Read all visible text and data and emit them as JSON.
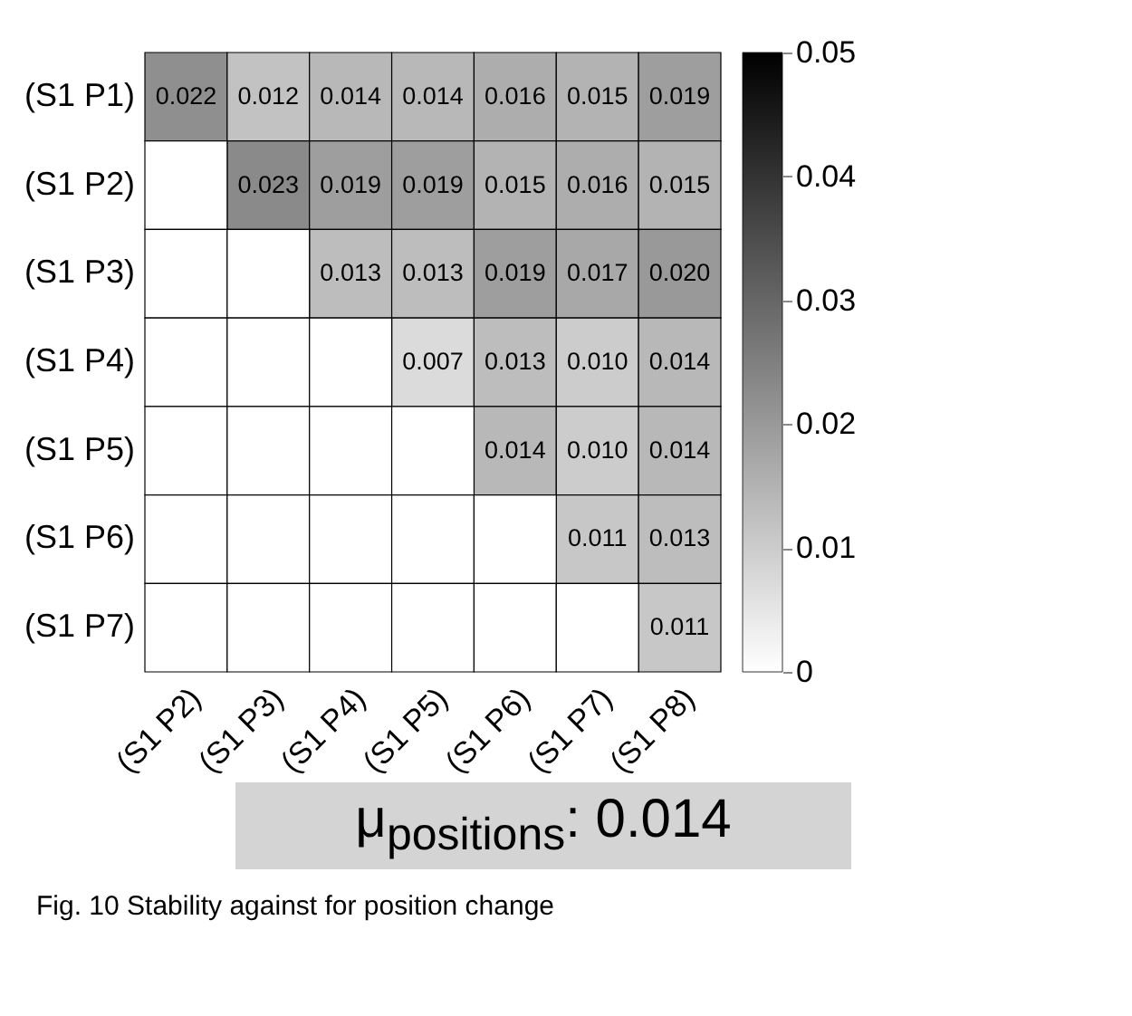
{
  "chart_data": {
    "type": "heatmap",
    "categories": [
      "(S1 P2)",
      "(S1 P3)",
      "(S1 P4)",
      "(S1 P5)",
      "(S1 P6)",
      "(S1 P7)",
      "(S1 P8)"
    ],
    "y_categories": [
      "(S1 P1)",
      "(S1 P2)",
      "(S1 P3)",
      "(S1 P4)",
      "(S1 P5)",
      "(S1 P6)",
      "(S1 P7)"
    ],
    "cells": [
      [
        0.022,
        0.012,
        0.014,
        0.014,
        0.016,
        0.015,
        0.019
      ],
      [
        null,
        0.023,
        0.019,
        0.019,
        0.015,
        0.016,
        0.015
      ],
      [
        null,
        null,
        0.013,
        0.013,
        0.019,
        0.017,
        0.02
      ],
      [
        null,
        null,
        null,
        0.007,
        0.013,
        0.01,
        0.014
      ],
      [
        null,
        null,
        null,
        null,
        0.014,
        0.01,
        0.014
      ],
      [
        null,
        null,
        null,
        null,
        null,
        0.011,
        0.013
      ],
      [
        null,
        null,
        null,
        null,
        null,
        null,
        0.011
      ]
    ],
    "cell_labels": [
      [
        "0.022",
        "0.012",
        "0.014",
        "0.014",
        "0.016",
        "0.015",
        "0.019"
      ],
      [
        null,
        "0.023",
        "0.019",
        "0.019",
        "0.015",
        "0.016",
        "0.015"
      ],
      [
        null,
        null,
        "0.013",
        "0.013",
        "0.019",
        "0.017",
        "0.020"
      ],
      [
        null,
        null,
        null,
        "0.007",
        "0.013",
        "0.010",
        "0.014"
      ],
      [
        null,
        null,
        null,
        null,
        "0.014",
        "0.010",
        "0.014"
      ],
      [
        null,
        null,
        null,
        null,
        null,
        "0.011",
        "0.013"
      ],
      [
        null,
        null,
        null,
        null,
        null,
        null,
        "0.011"
      ]
    ],
    "data_labels": true,
    "clim": [
      0,
      0.05
    ],
    "cticks": [
      0,
      0.01,
      0.02,
      0.03,
      0.04,
      0.05
    ],
    "annotations": [
      "μ$_{positions}$: 0.014",
      "Fig. 10 Stability against for position change"
    ]
  }
}
